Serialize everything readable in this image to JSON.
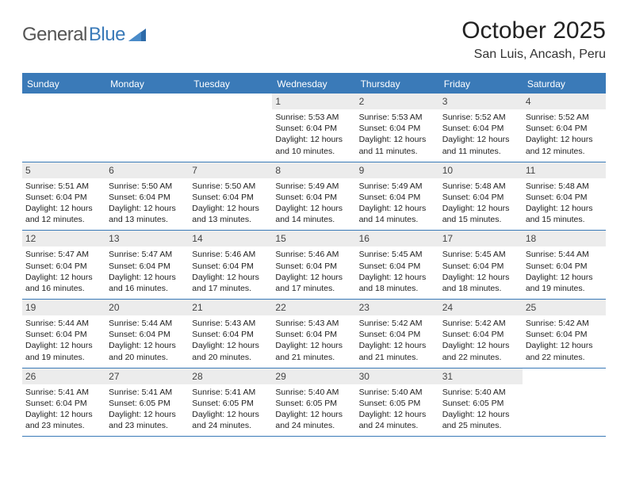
{
  "brand": {
    "part1": "General",
    "part2": "Blue"
  },
  "title": "October 2025",
  "subtitle": "San Luis, Ancash, Peru",
  "colors": {
    "accent": "#3a7ab8",
    "daynum_bg": "#ececec",
    "text": "#1a1a1a"
  },
  "dayHeaders": [
    "Sunday",
    "Monday",
    "Tuesday",
    "Wednesday",
    "Thursday",
    "Friday",
    "Saturday"
  ],
  "weeks": [
    [
      {
        "num": "",
        "lines": [
          "",
          "",
          "",
          ""
        ]
      },
      {
        "num": "",
        "lines": [
          "",
          "",
          "",
          ""
        ]
      },
      {
        "num": "",
        "lines": [
          "",
          "",
          "",
          ""
        ]
      },
      {
        "num": "1",
        "lines": [
          "Sunrise: 5:53 AM",
          "Sunset: 6:04 PM",
          "Daylight: 12 hours",
          "and 10 minutes."
        ]
      },
      {
        "num": "2",
        "lines": [
          "Sunrise: 5:53 AM",
          "Sunset: 6:04 PM",
          "Daylight: 12 hours",
          "and 11 minutes."
        ]
      },
      {
        "num": "3",
        "lines": [
          "Sunrise: 5:52 AM",
          "Sunset: 6:04 PM",
          "Daylight: 12 hours",
          "and 11 minutes."
        ]
      },
      {
        "num": "4",
        "lines": [
          "Sunrise: 5:52 AM",
          "Sunset: 6:04 PM",
          "Daylight: 12 hours",
          "and 12 minutes."
        ]
      }
    ],
    [
      {
        "num": "5",
        "lines": [
          "Sunrise: 5:51 AM",
          "Sunset: 6:04 PM",
          "Daylight: 12 hours",
          "and 12 minutes."
        ]
      },
      {
        "num": "6",
        "lines": [
          "Sunrise: 5:50 AM",
          "Sunset: 6:04 PM",
          "Daylight: 12 hours",
          "and 13 minutes."
        ]
      },
      {
        "num": "7",
        "lines": [
          "Sunrise: 5:50 AM",
          "Sunset: 6:04 PM",
          "Daylight: 12 hours",
          "and 13 minutes."
        ]
      },
      {
        "num": "8",
        "lines": [
          "Sunrise: 5:49 AM",
          "Sunset: 6:04 PM",
          "Daylight: 12 hours",
          "and 14 minutes."
        ]
      },
      {
        "num": "9",
        "lines": [
          "Sunrise: 5:49 AM",
          "Sunset: 6:04 PM",
          "Daylight: 12 hours",
          "and 14 minutes."
        ]
      },
      {
        "num": "10",
        "lines": [
          "Sunrise: 5:48 AM",
          "Sunset: 6:04 PM",
          "Daylight: 12 hours",
          "and 15 minutes."
        ]
      },
      {
        "num": "11",
        "lines": [
          "Sunrise: 5:48 AM",
          "Sunset: 6:04 PM",
          "Daylight: 12 hours",
          "and 15 minutes."
        ]
      }
    ],
    [
      {
        "num": "12",
        "lines": [
          "Sunrise: 5:47 AM",
          "Sunset: 6:04 PM",
          "Daylight: 12 hours",
          "and 16 minutes."
        ]
      },
      {
        "num": "13",
        "lines": [
          "Sunrise: 5:47 AM",
          "Sunset: 6:04 PM",
          "Daylight: 12 hours",
          "and 16 minutes."
        ]
      },
      {
        "num": "14",
        "lines": [
          "Sunrise: 5:46 AM",
          "Sunset: 6:04 PM",
          "Daylight: 12 hours",
          "and 17 minutes."
        ]
      },
      {
        "num": "15",
        "lines": [
          "Sunrise: 5:46 AM",
          "Sunset: 6:04 PM",
          "Daylight: 12 hours",
          "and 17 minutes."
        ]
      },
      {
        "num": "16",
        "lines": [
          "Sunrise: 5:45 AM",
          "Sunset: 6:04 PM",
          "Daylight: 12 hours",
          "and 18 minutes."
        ]
      },
      {
        "num": "17",
        "lines": [
          "Sunrise: 5:45 AM",
          "Sunset: 6:04 PM",
          "Daylight: 12 hours",
          "and 18 minutes."
        ]
      },
      {
        "num": "18",
        "lines": [
          "Sunrise: 5:44 AM",
          "Sunset: 6:04 PM",
          "Daylight: 12 hours",
          "and 19 minutes."
        ]
      }
    ],
    [
      {
        "num": "19",
        "lines": [
          "Sunrise: 5:44 AM",
          "Sunset: 6:04 PM",
          "Daylight: 12 hours",
          "and 19 minutes."
        ]
      },
      {
        "num": "20",
        "lines": [
          "Sunrise: 5:44 AM",
          "Sunset: 6:04 PM",
          "Daylight: 12 hours",
          "and 20 minutes."
        ]
      },
      {
        "num": "21",
        "lines": [
          "Sunrise: 5:43 AM",
          "Sunset: 6:04 PM",
          "Daylight: 12 hours",
          "and 20 minutes."
        ]
      },
      {
        "num": "22",
        "lines": [
          "Sunrise: 5:43 AM",
          "Sunset: 6:04 PM",
          "Daylight: 12 hours",
          "and 21 minutes."
        ]
      },
      {
        "num": "23",
        "lines": [
          "Sunrise: 5:42 AM",
          "Sunset: 6:04 PM",
          "Daylight: 12 hours",
          "and 21 minutes."
        ]
      },
      {
        "num": "24",
        "lines": [
          "Sunrise: 5:42 AM",
          "Sunset: 6:04 PM",
          "Daylight: 12 hours",
          "and 22 minutes."
        ]
      },
      {
        "num": "25",
        "lines": [
          "Sunrise: 5:42 AM",
          "Sunset: 6:04 PM",
          "Daylight: 12 hours",
          "and 22 minutes."
        ]
      }
    ],
    [
      {
        "num": "26",
        "lines": [
          "Sunrise: 5:41 AM",
          "Sunset: 6:04 PM",
          "Daylight: 12 hours",
          "and 23 minutes."
        ]
      },
      {
        "num": "27",
        "lines": [
          "Sunrise: 5:41 AM",
          "Sunset: 6:05 PM",
          "Daylight: 12 hours",
          "and 23 minutes."
        ]
      },
      {
        "num": "28",
        "lines": [
          "Sunrise: 5:41 AM",
          "Sunset: 6:05 PM",
          "Daylight: 12 hours",
          "and 24 minutes."
        ]
      },
      {
        "num": "29",
        "lines": [
          "Sunrise: 5:40 AM",
          "Sunset: 6:05 PM",
          "Daylight: 12 hours",
          "and 24 minutes."
        ]
      },
      {
        "num": "30",
        "lines": [
          "Sunrise: 5:40 AM",
          "Sunset: 6:05 PM",
          "Daylight: 12 hours",
          "and 24 minutes."
        ]
      },
      {
        "num": "31",
        "lines": [
          "Sunrise: 5:40 AM",
          "Sunset: 6:05 PM",
          "Daylight: 12 hours",
          "and 25 minutes."
        ]
      },
      {
        "num": "",
        "lines": [
          "",
          "",
          "",
          ""
        ]
      }
    ]
  ]
}
